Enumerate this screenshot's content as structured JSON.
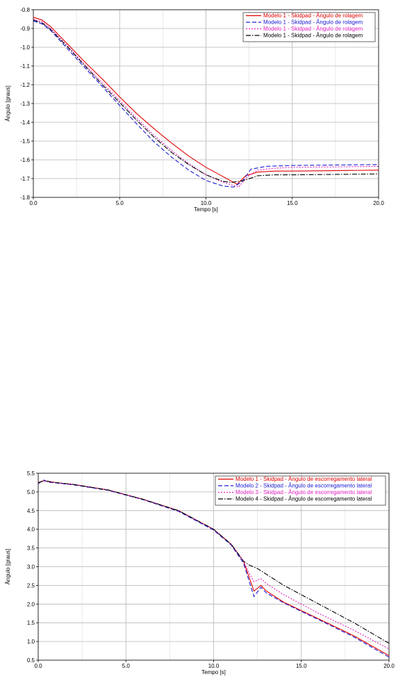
{
  "chart_data": [
    {
      "type": "line",
      "xlabel": "Tempo [s]",
      "ylabel": "Ângulo [graus]",
      "xlim": [
        0,
        20
      ],
      "ylim": [
        -1.8,
        -0.8
      ],
      "xticks": [
        0.0,
        5.0,
        10.0,
        15.0,
        20.0
      ],
      "xtick_labels": [
        "0.0",
        "5.0",
        "10.0",
        "15.0",
        "20.0"
      ],
      "yticks": [
        -0.8,
        -0.9,
        -1.0,
        -1.1,
        -1.2,
        -1.3,
        -1.4,
        -1.5,
        -1.6,
        -1.7,
        -1.8
      ],
      "ytick_labels": [
        "-0.8",
        "-0.9",
        "-1.0",
        "-1.1",
        "-1.2",
        "-1.3",
        "-1.4",
        "-1.5",
        "-1.6",
        "-1.7",
        "-1.8"
      ],
      "grid": true,
      "legend_position": "top-right",
      "series": [
        {
          "name": "Modelo 1 - Skidpad - Ângulo de rolagem",
          "color": "#e00000",
          "dash": "solid",
          "x": [
            0,
            0.5,
            1,
            2,
            3,
            4,
            5,
            6,
            7,
            8,
            9,
            10,
            11,
            11.8,
            12.3,
            13,
            14,
            15,
            17,
            20
          ],
          "y": [
            -0.84,
            -0.855,
            -0.89,
            -0.985,
            -1.08,
            -1.17,
            -1.265,
            -1.355,
            -1.435,
            -1.51,
            -1.58,
            -1.64,
            -1.69,
            -1.73,
            -1.685,
            -1.665,
            -1.66,
            -1.66,
            -1.658,
            -1.655
          ]
        },
        {
          "name": "Modelo 1 - Skidpad - Ângulo de rolagem",
          "color": "#1a1ad6",
          "dash": "6,3",
          "x": [
            0,
            0.5,
            1,
            2,
            3,
            4,
            5,
            6,
            7,
            8,
            9,
            10,
            11,
            11.6,
            12.1,
            12.6,
            13.5,
            15,
            17,
            20
          ],
          "y": [
            -0.86,
            -0.875,
            -0.91,
            -1.01,
            -1.11,
            -1.21,
            -1.31,
            -1.41,
            -1.505,
            -1.585,
            -1.655,
            -1.71,
            -1.74,
            -1.745,
            -1.715,
            -1.65,
            -1.635,
            -1.63,
            -1.628,
            -1.625
          ]
        },
        {
          "name": "Modelo 1 - Skidpad - Ângulo de rolagem",
          "color": "#e020c0",
          "dash": "2,2",
          "x": [
            0,
            0.5,
            1,
            2,
            3,
            4,
            5,
            6,
            7,
            8,
            9,
            10,
            11,
            11.9,
            12.4,
            13,
            14,
            15,
            17,
            20
          ],
          "y": [
            -0.85,
            -0.865,
            -0.9,
            -0.995,
            -1.095,
            -1.19,
            -1.285,
            -1.38,
            -1.47,
            -1.55,
            -1.62,
            -1.68,
            -1.72,
            -1.745,
            -1.69,
            -1.655,
            -1.645,
            -1.64,
            -1.638,
            -1.635
          ]
        },
        {
          "name": "Modelo 1 - Skidpad - Ângulo de rolagem",
          "color": "#000000",
          "dash": "7,2,1.5,2",
          "x": [
            0,
            0.5,
            1,
            2,
            3,
            4,
            5,
            6,
            7,
            8,
            9,
            10,
            11,
            11.5,
            12.2,
            13,
            14,
            15,
            17,
            20
          ],
          "y": [
            -0.855,
            -0.87,
            -0.905,
            -1.0,
            -1.1,
            -1.2,
            -1.295,
            -1.39,
            -1.48,
            -1.56,
            -1.625,
            -1.68,
            -1.715,
            -1.72,
            -1.71,
            -1.685,
            -1.68,
            -1.68,
            -1.678,
            -1.675
          ]
        }
      ]
    },
    {
      "type": "line",
      "xlabel": "Tempo [s]",
      "ylabel": "Ângulo [graus]",
      "xlim": [
        0,
        20
      ],
      "ylim": [
        0.5,
        5.5
      ],
      "xticks": [
        0.0,
        5.0,
        10.0,
        15.0,
        20.0
      ],
      "xtick_labels": [
        "0.0",
        "5.0",
        "10.0",
        "15.0",
        "20.0"
      ],
      "yticks": [
        0.5,
        1.0,
        1.5,
        2.0,
        2.5,
        3.0,
        3.5,
        4.0,
        4.5,
        5.0,
        5.5
      ],
      "ytick_labels": [
        "0.5",
        "1.0",
        "1.5",
        "2.0",
        "2.5",
        "3.0",
        "3.5",
        "4.0",
        "4.5",
        "5.0",
        "5.5"
      ],
      "grid": true,
      "legend_position": "top-right",
      "series": [
        {
          "name": "Modelo 1 - Skidpad - Ângulo de escorregamento lateral",
          "color": "#e00000",
          "dash": "solid",
          "x": [
            0,
            0.3,
            0.6,
            1,
            2,
            4,
            6,
            8,
            10,
            11,
            11.7,
            12.0,
            12.3,
            12.7,
            13.0,
            14,
            16,
            18,
            20
          ],
          "y": [
            5.25,
            5.3,
            5.28,
            5.25,
            5.2,
            5.05,
            4.8,
            4.5,
            4.0,
            3.6,
            3.15,
            2.75,
            2.35,
            2.5,
            2.35,
            2.05,
            1.6,
            1.15,
            0.62
          ]
        },
        {
          "name": "Modelo 2 - Skidpad - Ângulo de escorregamento lateral",
          "color": "#1a1ad6",
          "dash": "6,3",
          "x": [
            0,
            0.3,
            0.6,
            1,
            2,
            4,
            6,
            8,
            10,
            11,
            11.7,
            12.0,
            12.3,
            12.7,
            13.0,
            14,
            16,
            18,
            20
          ],
          "y": [
            5.22,
            5.32,
            5.26,
            5.24,
            5.19,
            5.04,
            4.79,
            4.48,
            3.98,
            3.58,
            3.1,
            2.65,
            2.2,
            2.45,
            2.3,
            2.03,
            1.58,
            1.12,
            0.58
          ]
        },
        {
          "name": "Modelo 3 - Skidpad - Ângulo de escorregamento lateral",
          "color": "#e020c0",
          "dash": "2,2",
          "x": [
            0,
            0.3,
            0.6,
            1,
            2,
            4,
            6,
            8,
            10,
            11,
            11.7,
            12.0,
            12.3,
            12.7,
            13.0,
            14,
            16,
            18,
            20
          ],
          "y": [
            5.24,
            5.3,
            5.27,
            5.25,
            5.2,
            5.05,
            4.8,
            4.5,
            4.0,
            3.6,
            3.15,
            2.85,
            2.6,
            2.68,
            2.55,
            2.25,
            1.75,
            1.3,
            0.8
          ]
        },
        {
          "name": "Modelo 4 - Skidpad - Ângulo de escorregamento lateral",
          "color": "#000000",
          "dash": "7,2,1.5,2",
          "x": [
            0,
            0.3,
            0.6,
            1,
            2,
            4,
            6,
            8,
            10,
            11,
            11.7,
            12.0,
            12.5,
            13.0,
            14,
            16,
            18,
            20
          ],
          "y": [
            5.24,
            5.3,
            5.28,
            5.25,
            5.2,
            5.05,
            4.8,
            4.5,
            4.0,
            3.6,
            3.15,
            3.05,
            2.95,
            2.8,
            2.5,
            2.0,
            1.5,
            0.95
          ]
        }
      ]
    }
  ]
}
